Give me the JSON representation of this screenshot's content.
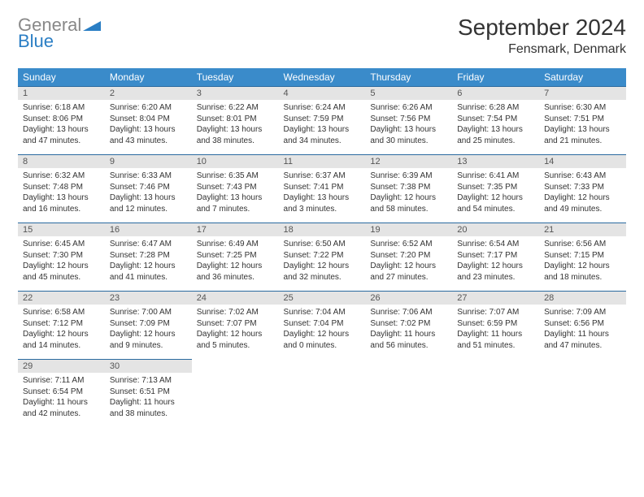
{
  "logo": {
    "word1": "General",
    "word2": "Blue"
  },
  "title": "September 2024",
  "location": "Fensmark, Denmark",
  "header_bg": "#3a8bca",
  "daynum_bg": "#e4e4e4",
  "week_border": "#2a6aa0",
  "dow": [
    "Sunday",
    "Monday",
    "Tuesday",
    "Wednesday",
    "Thursday",
    "Friday",
    "Saturday"
  ],
  "weeks": [
    [
      {
        "n": "1",
        "sr": "Sunrise: 6:18 AM",
        "ss": "Sunset: 8:06 PM",
        "dl": "Daylight: 13 hours and 47 minutes."
      },
      {
        "n": "2",
        "sr": "Sunrise: 6:20 AM",
        "ss": "Sunset: 8:04 PM",
        "dl": "Daylight: 13 hours and 43 minutes."
      },
      {
        "n": "3",
        "sr": "Sunrise: 6:22 AM",
        "ss": "Sunset: 8:01 PM",
        "dl": "Daylight: 13 hours and 38 minutes."
      },
      {
        "n": "4",
        "sr": "Sunrise: 6:24 AM",
        "ss": "Sunset: 7:59 PM",
        "dl": "Daylight: 13 hours and 34 minutes."
      },
      {
        "n": "5",
        "sr": "Sunrise: 6:26 AM",
        "ss": "Sunset: 7:56 PM",
        "dl": "Daylight: 13 hours and 30 minutes."
      },
      {
        "n": "6",
        "sr": "Sunrise: 6:28 AM",
        "ss": "Sunset: 7:54 PM",
        "dl": "Daylight: 13 hours and 25 minutes."
      },
      {
        "n": "7",
        "sr": "Sunrise: 6:30 AM",
        "ss": "Sunset: 7:51 PM",
        "dl": "Daylight: 13 hours and 21 minutes."
      }
    ],
    [
      {
        "n": "8",
        "sr": "Sunrise: 6:32 AM",
        "ss": "Sunset: 7:48 PM",
        "dl": "Daylight: 13 hours and 16 minutes."
      },
      {
        "n": "9",
        "sr": "Sunrise: 6:33 AM",
        "ss": "Sunset: 7:46 PM",
        "dl": "Daylight: 13 hours and 12 minutes."
      },
      {
        "n": "10",
        "sr": "Sunrise: 6:35 AM",
        "ss": "Sunset: 7:43 PM",
        "dl": "Daylight: 13 hours and 7 minutes."
      },
      {
        "n": "11",
        "sr": "Sunrise: 6:37 AM",
        "ss": "Sunset: 7:41 PM",
        "dl": "Daylight: 13 hours and 3 minutes."
      },
      {
        "n": "12",
        "sr": "Sunrise: 6:39 AM",
        "ss": "Sunset: 7:38 PM",
        "dl": "Daylight: 12 hours and 58 minutes."
      },
      {
        "n": "13",
        "sr": "Sunrise: 6:41 AM",
        "ss": "Sunset: 7:35 PM",
        "dl": "Daylight: 12 hours and 54 minutes."
      },
      {
        "n": "14",
        "sr": "Sunrise: 6:43 AM",
        "ss": "Sunset: 7:33 PM",
        "dl": "Daylight: 12 hours and 49 minutes."
      }
    ],
    [
      {
        "n": "15",
        "sr": "Sunrise: 6:45 AM",
        "ss": "Sunset: 7:30 PM",
        "dl": "Daylight: 12 hours and 45 minutes."
      },
      {
        "n": "16",
        "sr": "Sunrise: 6:47 AM",
        "ss": "Sunset: 7:28 PM",
        "dl": "Daylight: 12 hours and 41 minutes."
      },
      {
        "n": "17",
        "sr": "Sunrise: 6:49 AM",
        "ss": "Sunset: 7:25 PM",
        "dl": "Daylight: 12 hours and 36 minutes."
      },
      {
        "n": "18",
        "sr": "Sunrise: 6:50 AM",
        "ss": "Sunset: 7:22 PM",
        "dl": "Daylight: 12 hours and 32 minutes."
      },
      {
        "n": "19",
        "sr": "Sunrise: 6:52 AM",
        "ss": "Sunset: 7:20 PM",
        "dl": "Daylight: 12 hours and 27 minutes."
      },
      {
        "n": "20",
        "sr": "Sunrise: 6:54 AM",
        "ss": "Sunset: 7:17 PM",
        "dl": "Daylight: 12 hours and 23 minutes."
      },
      {
        "n": "21",
        "sr": "Sunrise: 6:56 AM",
        "ss": "Sunset: 7:15 PM",
        "dl": "Daylight: 12 hours and 18 minutes."
      }
    ],
    [
      {
        "n": "22",
        "sr": "Sunrise: 6:58 AM",
        "ss": "Sunset: 7:12 PM",
        "dl": "Daylight: 12 hours and 14 minutes."
      },
      {
        "n": "23",
        "sr": "Sunrise: 7:00 AM",
        "ss": "Sunset: 7:09 PM",
        "dl": "Daylight: 12 hours and 9 minutes."
      },
      {
        "n": "24",
        "sr": "Sunrise: 7:02 AM",
        "ss": "Sunset: 7:07 PM",
        "dl": "Daylight: 12 hours and 5 minutes."
      },
      {
        "n": "25",
        "sr": "Sunrise: 7:04 AM",
        "ss": "Sunset: 7:04 PM",
        "dl": "Daylight: 12 hours and 0 minutes."
      },
      {
        "n": "26",
        "sr": "Sunrise: 7:06 AM",
        "ss": "Sunset: 7:02 PM",
        "dl": "Daylight: 11 hours and 56 minutes."
      },
      {
        "n": "27",
        "sr": "Sunrise: 7:07 AM",
        "ss": "Sunset: 6:59 PM",
        "dl": "Daylight: 11 hours and 51 minutes."
      },
      {
        "n": "28",
        "sr": "Sunrise: 7:09 AM",
        "ss": "Sunset: 6:56 PM",
        "dl": "Daylight: 11 hours and 47 minutes."
      }
    ],
    [
      {
        "n": "29",
        "sr": "Sunrise: 7:11 AM",
        "ss": "Sunset: 6:54 PM",
        "dl": "Daylight: 11 hours and 42 minutes."
      },
      {
        "n": "30",
        "sr": "Sunrise: 7:13 AM",
        "ss": "Sunset: 6:51 PM",
        "dl": "Daylight: 11 hours and 38 minutes."
      },
      null,
      null,
      null,
      null,
      null
    ]
  ]
}
